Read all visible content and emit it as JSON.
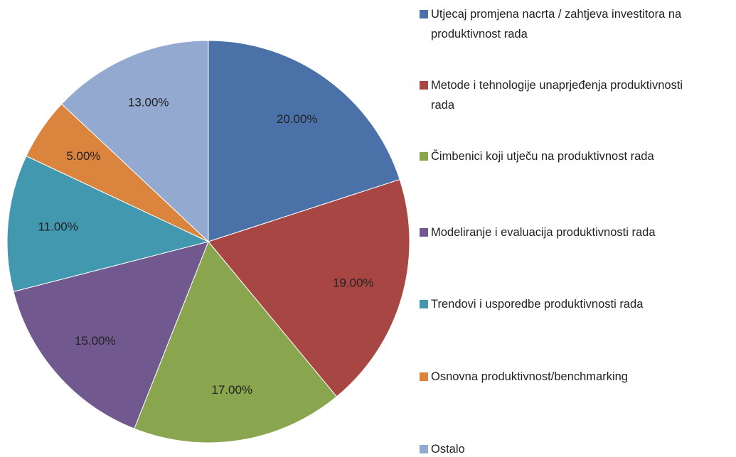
{
  "chart_data": {
    "type": "pie",
    "categories": [
      "Utjecaj promjena nacrta / zahtjeva investitora na produktivnost rada",
      "Metode i tehnologije unaprjeđenja produktivnosti rada",
      "Čimbenici koji utječu na produktivnost rada",
      "Modeliranje i evaluacija produktivnosti rada",
      "Trendovi i usporedbe produktivnosti rada",
      "Osnovna produktivnost/benchmarking",
      "Ostalo"
    ],
    "values": [
      20,
      19,
      17,
      15,
      11,
      5,
      13
    ],
    "value_labels": [
      "20.00%",
      "19.00%",
      "17.00%",
      "15.00%",
      "11.00%",
      "5.00%",
      "13.00%"
    ],
    "colors": [
      "#4a72a8",
      "#a84644",
      "#89a54e",
      "#71588f",
      "#4198af",
      "#db843d",
      "#93a9cf"
    ],
    "legend": "right"
  }
}
